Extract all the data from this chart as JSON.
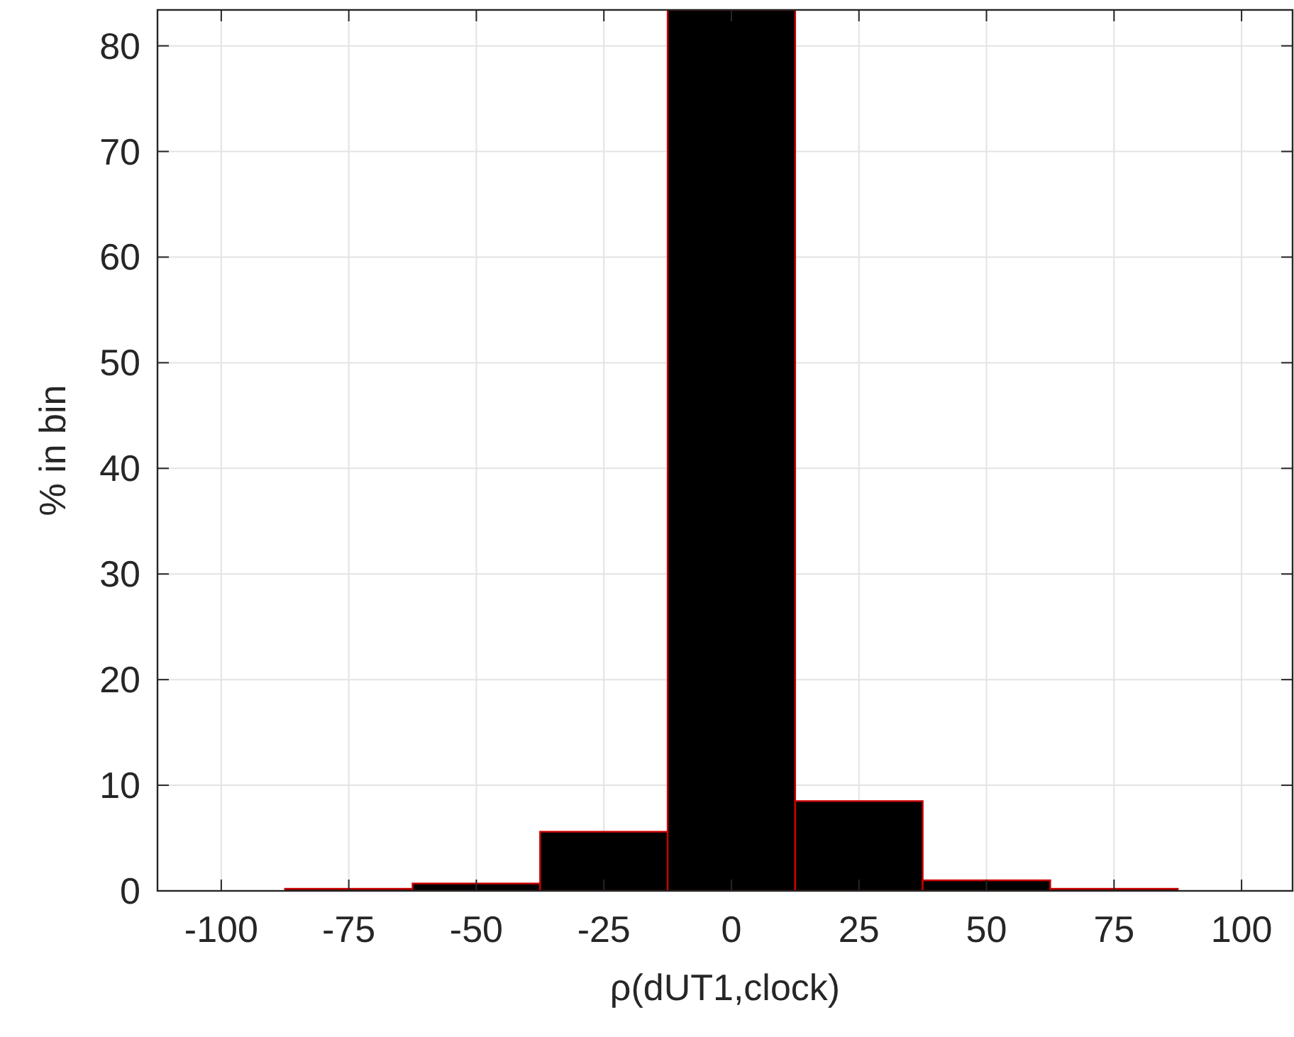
{
  "chart_data": {
    "type": "histogram",
    "xlabel": "ρ(dUT1,clock)",
    "ylabel": "% in bin",
    "bins": [
      -112.5,
      -87.5,
      -62.5,
      -37.5,
      -12.5,
      12.5,
      37.5,
      62.5,
      87.5,
      112.5
    ],
    "values": [
      0,
      0.2,
      0.7,
      5.6,
      83.4,
      8.5,
      1,
      0.2,
      0
    ],
    "color": "#000000",
    "xlim": [
      -112.5,
      110
    ],
    "ylim": [
      0,
      83.4
    ],
    "xticks": [
      -100,
      -75,
      -50,
      -25,
      0,
      25,
      50,
      75,
      100
    ],
    "yticks": [
      0,
      10,
      20,
      30,
      40,
      50,
      60,
      70,
      80
    ],
    "grid": true
  }
}
